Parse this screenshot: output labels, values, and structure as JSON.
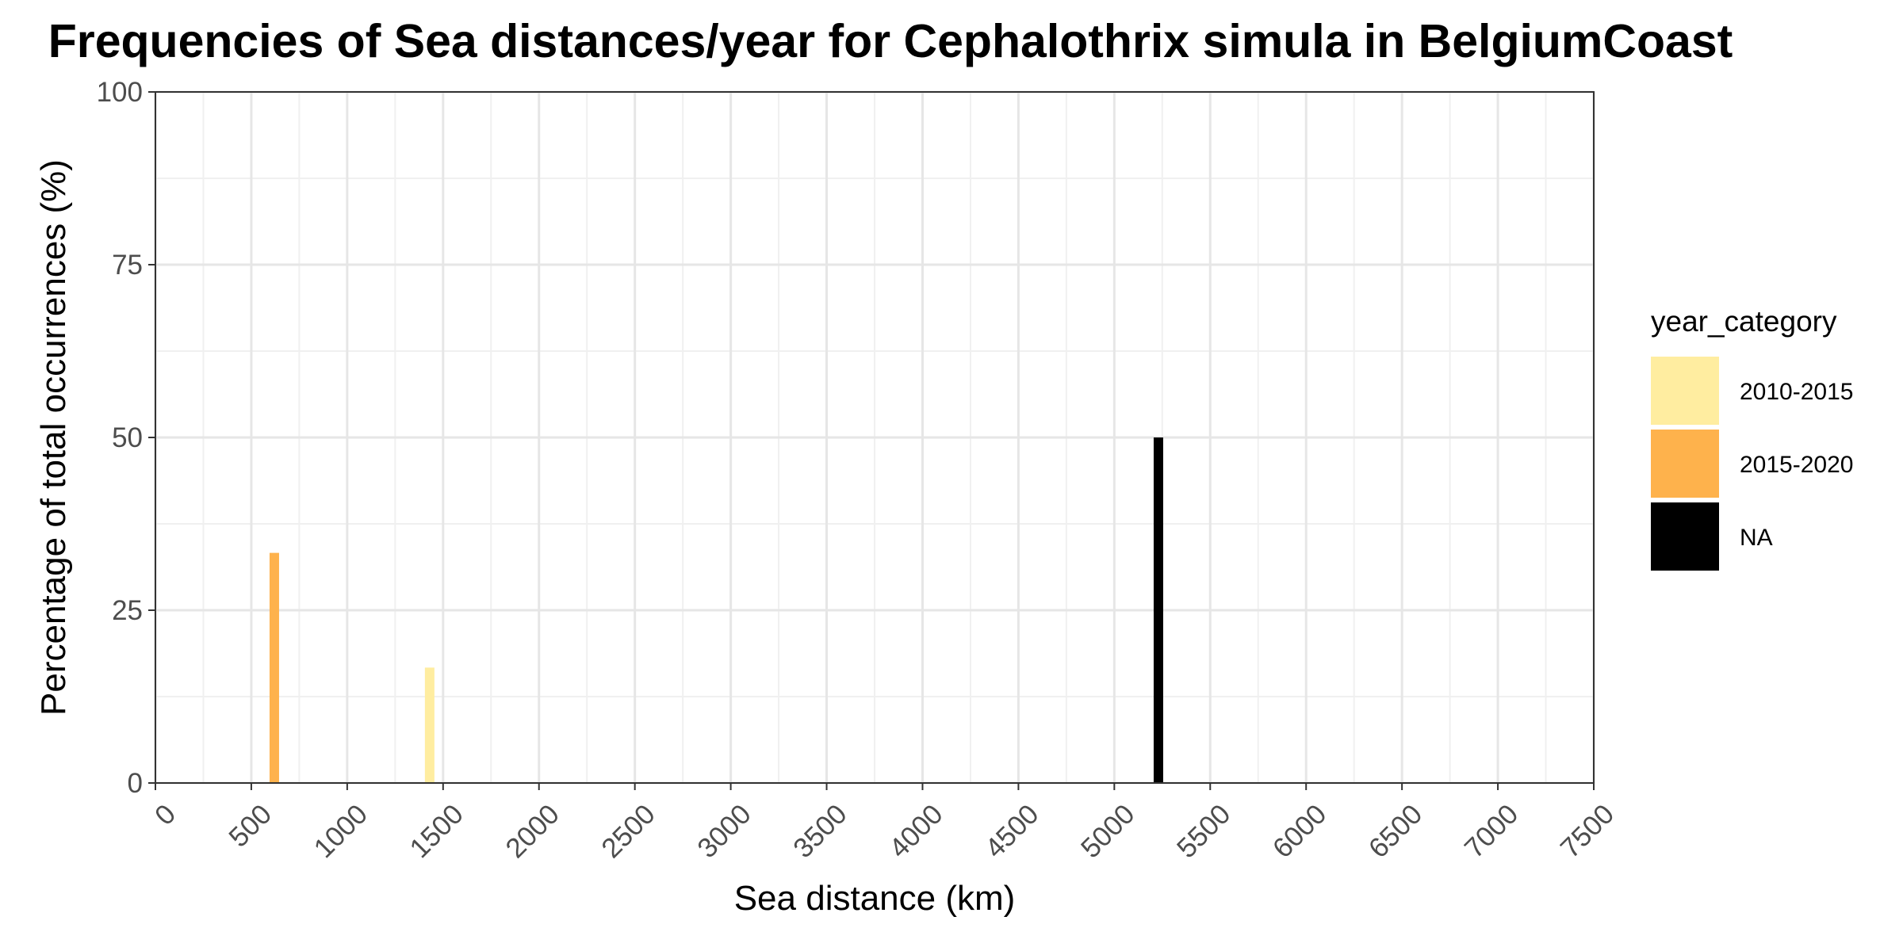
{
  "chart_data": {
    "type": "bar",
    "title": "Frequencies of Sea distances/year for Cephalothrix simula in BelgiumCoast",
    "xlabel": "Sea distance (km)",
    "ylabel": "Percentage of total occurrences (%)",
    "xlim": [
      0,
      7500
    ],
    "ylim": [
      0,
      100
    ],
    "x_ticks": [
      0,
      500,
      1000,
      1500,
      2000,
      2500,
      3000,
      3500,
      4000,
      4500,
      5000,
      5500,
      6000,
      6500,
      7000,
      7500
    ],
    "y_ticks": [
      0,
      25,
      50,
      75,
      100
    ],
    "grid": true,
    "legend": {
      "title": "year_category",
      "placement": "right",
      "entries": [
        {
          "label": "2010-2015",
          "color": "#FFEDA0"
        },
        {
          "label": "2015-2020",
          "color": "#FEB24C"
        },
        {
          "label": "NA",
          "color": "#000000"
        }
      ]
    },
    "bars": [
      {
        "x": 620,
        "y": 33.3,
        "category": "2015-2020",
        "color": "#FEB24C"
      },
      {
        "x": 1430,
        "y": 16.7,
        "category": "2010-2015",
        "color": "#FFEDA0"
      },
      {
        "x": 5230,
        "y": 50,
        "category": "NA",
        "color": "#000000"
      }
    ]
  }
}
